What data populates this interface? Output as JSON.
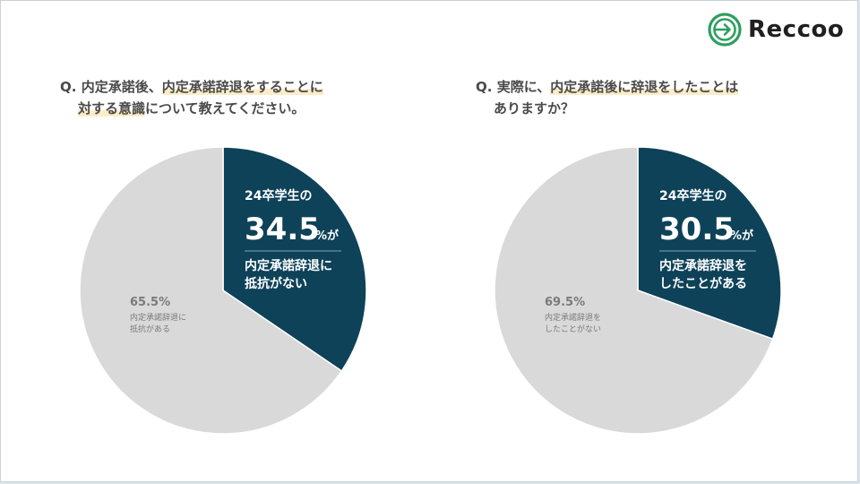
{
  "brand": {
    "name": "Reccoo"
  },
  "colors": {
    "highlight": "#0e4259",
    "rest": "#d9d9d9",
    "marker": "#fcedc8",
    "logo_green": "#2e9e60"
  },
  "questions": [
    {
      "prefix": "Q.",
      "line1_plain": "内定承諾後、",
      "line1_hl": "内定承諾辞退をすることに",
      "line2_hl": "対する意識",
      "line2_plain": "について教えてください。"
    },
    {
      "prefix": "Q.",
      "line1_plain": "実際に、",
      "line1_hl": "内定承諾後に辞退をしたことは",
      "line2_plain": "ありますか？",
      "line2_hl": ""
    }
  ],
  "chart_data": [
    {
      "type": "pie",
      "slices": [
        {
          "label": "内定承諾辞退に抵抗がない",
          "value": 34.5
        },
        {
          "label": "内定承諾辞退に抵抗がある",
          "value": 65.5
        }
      ],
      "callout": {
        "group": "24卒学生の",
        "pct": "34.5",
        "suffix": "%が",
        "desc1": "内定承諾辞退に",
        "desc2": "抵抗がない"
      },
      "other": {
        "pct": "65.5%",
        "desc1": "内定承諾辞退に",
        "desc2": "抵抗がある"
      }
    },
    {
      "type": "pie",
      "slices": [
        {
          "label": "内定承諾辞退をしたことがある",
          "value": 30.5
        },
        {
          "label": "内定承諾辞退をしたことがない",
          "value": 69.5
        }
      ],
      "callout": {
        "group": "24卒学生の",
        "pct": "30.5",
        "suffix": "%が",
        "desc1": "内定承諾辞退を",
        "desc2": "したことがある"
      },
      "other": {
        "pct": "69.5%",
        "desc1": "内定承諾辞退を",
        "desc2": "したことがない"
      }
    }
  ]
}
